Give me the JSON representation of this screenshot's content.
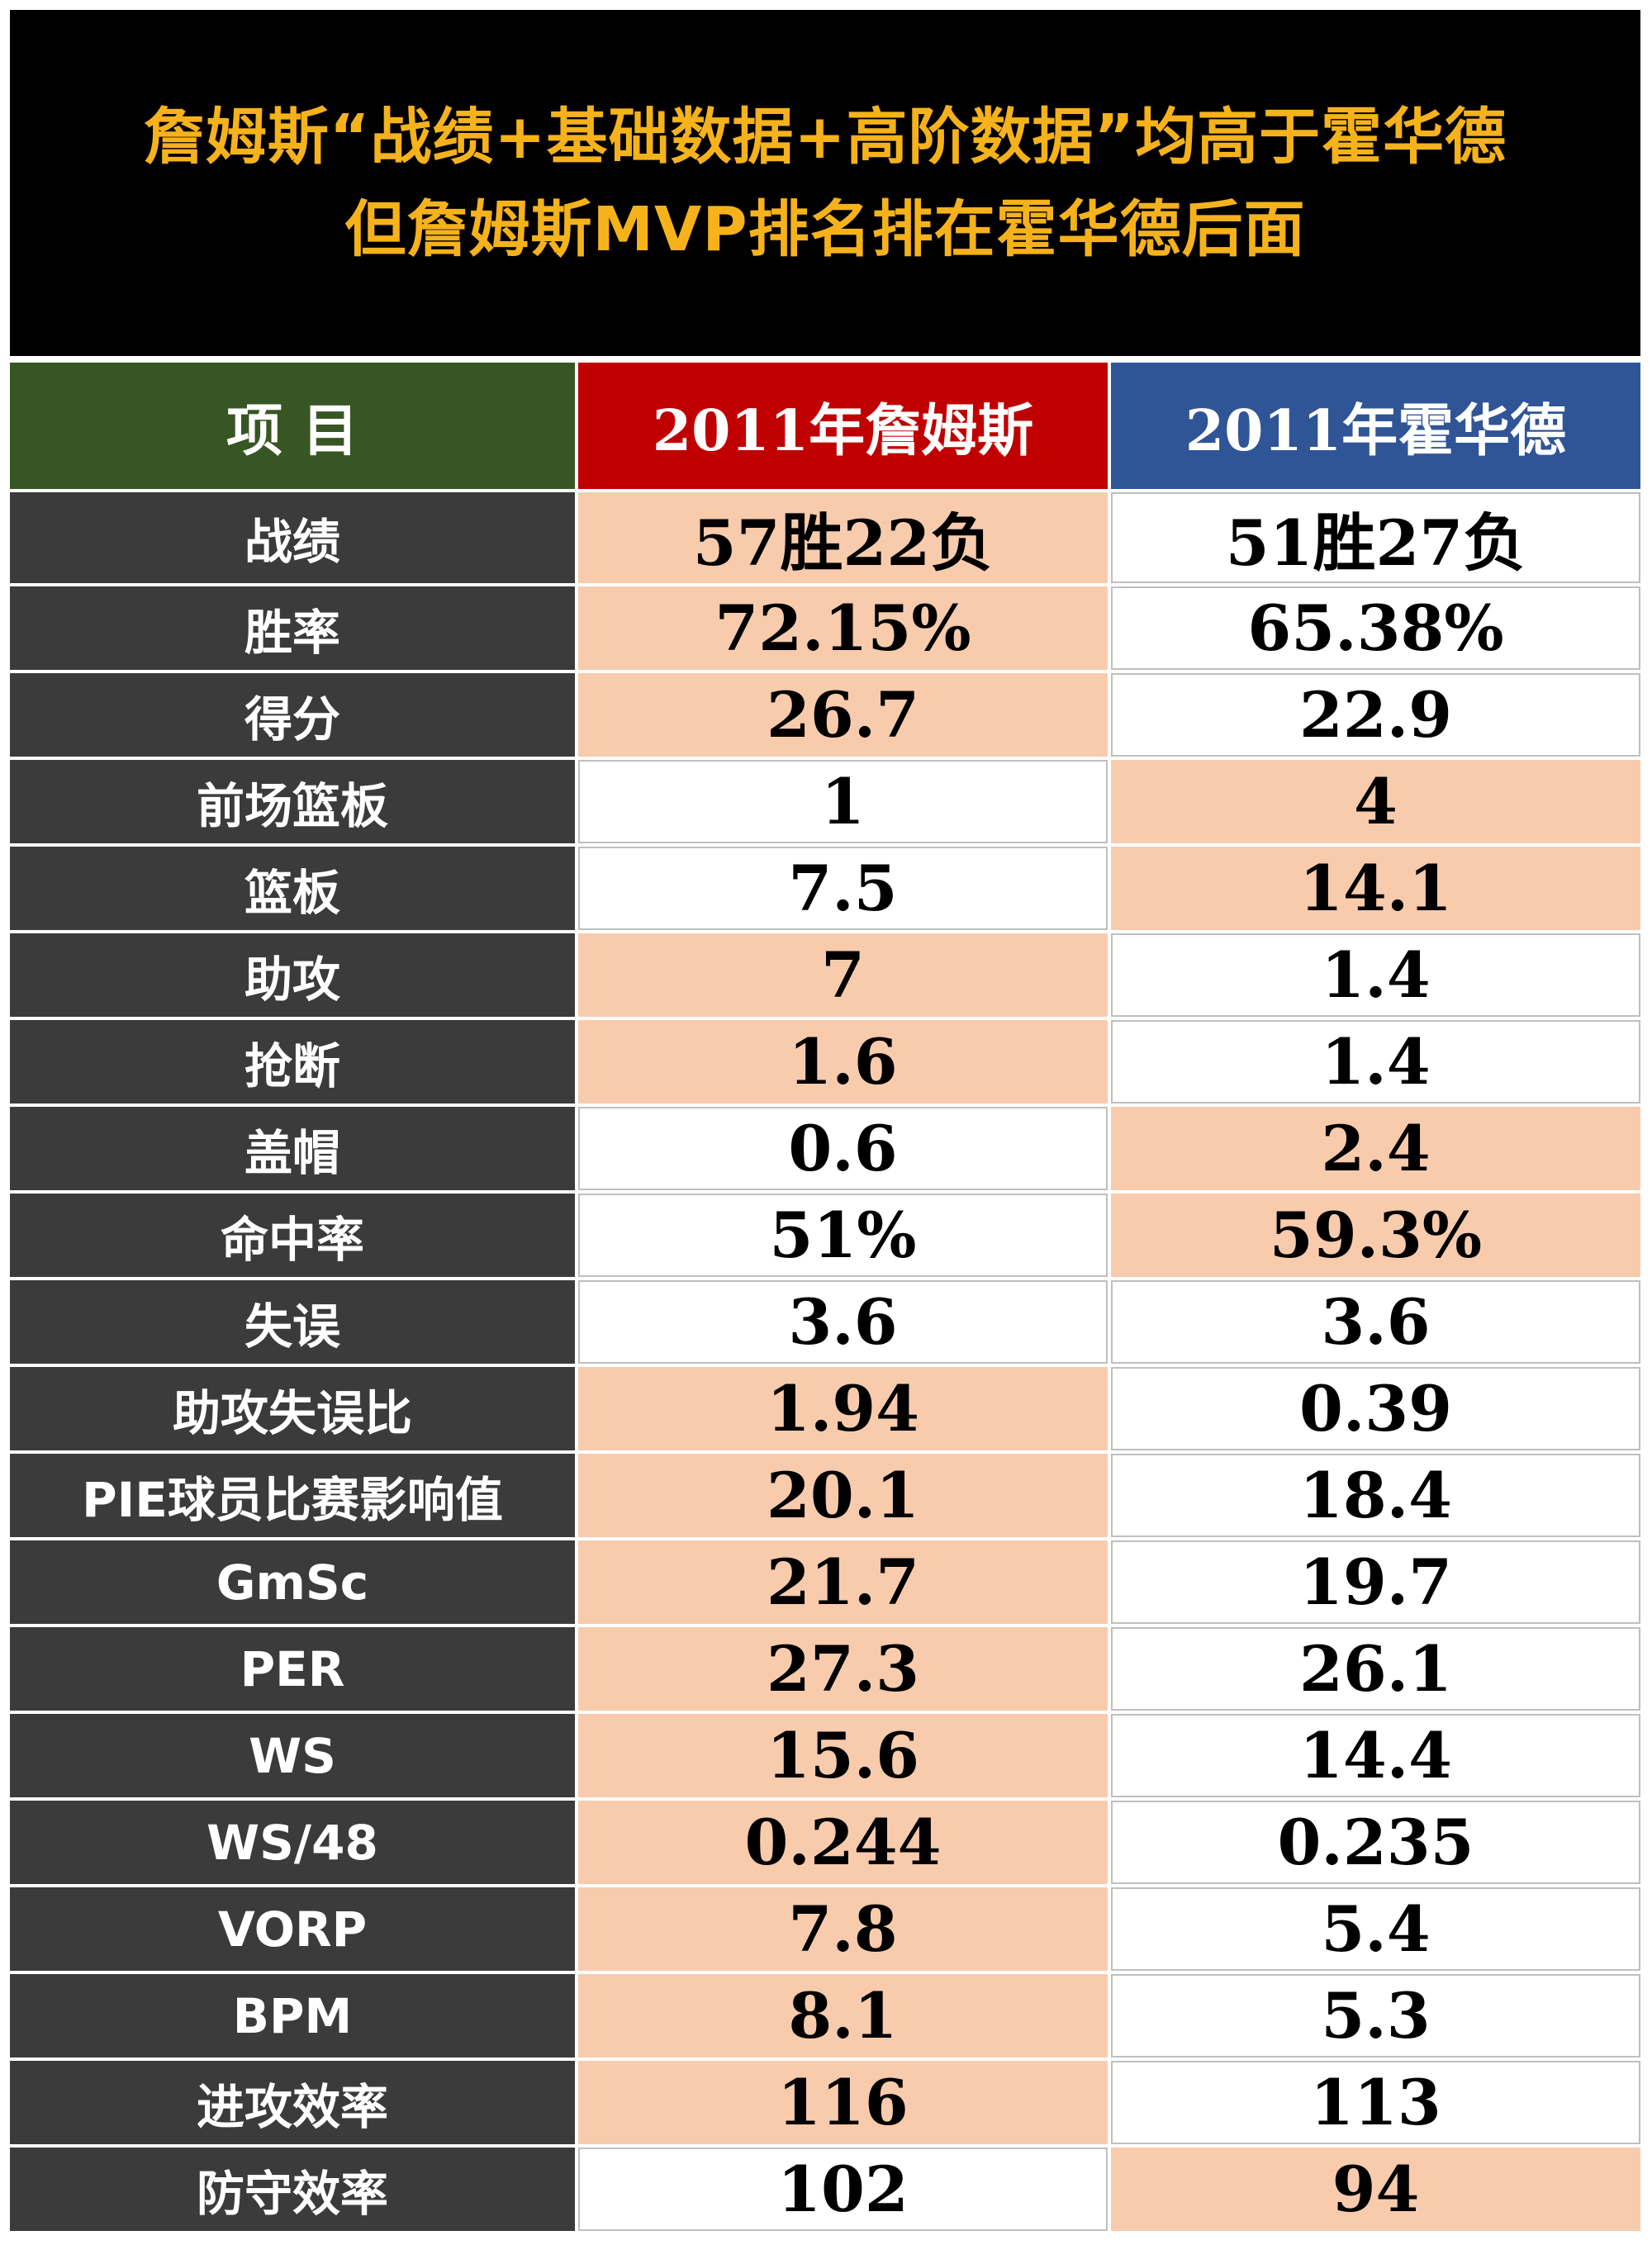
{
  "title": {
    "line1": "詹姆斯“战绩+基础数据+高阶数据”均高于霍华德",
    "line2": "但詹姆斯MVP排名排在霍华德后面"
  },
  "colors": {
    "title_bg": "#000000",
    "title_text": "#f5b21b",
    "header_item_bg": "#375623",
    "header_player1_bg": "#c00000",
    "header_player2_bg": "#2f5597",
    "label_bg": "#3b3b3b",
    "highlight_bg": "#f8cbad"
  },
  "chart_data": {
    "type": "table",
    "columns": [
      "项 目",
      "2011年詹姆斯",
      "2011年霍华德"
    ],
    "rows": [
      {
        "label": "战绩",
        "p1": "57胜22负",
        "p2": "51胜27负",
        "highlight": "p1"
      },
      {
        "label": "胜率",
        "p1": "72.15%",
        "p2": "65.38%",
        "highlight": "p1"
      },
      {
        "label": "得分",
        "p1": "26.7",
        "p2": "22.9",
        "highlight": "p1"
      },
      {
        "label": "前场篮板",
        "p1": "1",
        "p2": "4",
        "highlight": "p2"
      },
      {
        "label": "篮板",
        "p1": "7.5",
        "p2": "14.1",
        "highlight": "p2"
      },
      {
        "label": "助攻",
        "p1": "7",
        "p2": "1.4",
        "highlight": "p1"
      },
      {
        "label": "抢断",
        "p1": "1.6",
        "p2": "1.4",
        "highlight": "p1"
      },
      {
        "label": "盖帽",
        "p1": "0.6",
        "p2": "2.4",
        "highlight": "p2"
      },
      {
        "label": "命中率",
        "p1": "51%",
        "p2": "59.3%",
        "highlight": "p2"
      },
      {
        "label": "失误",
        "p1": "3.6",
        "p2": "3.6",
        "highlight": "none"
      },
      {
        "label": "助攻失误比",
        "p1": "1.94",
        "p2": "0.39",
        "highlight": "p1"
      },
      {
        "label": "PIE球员比赛影响值",
        "p1": "20.1",
        "p2": "18.4",
        "highlight": "p1"
      },
      {
        "label": "GmSc",
        "p1": "21.7",
        "p2": "19.7",
        "highlight": "p1"
      },
      {
        "label": "PER",
        "p1": "27.3",
        "p2": "26.1",
        "highlight": "p1"
      },
      {
        "label": "WS",
        "p1": "15.6",
        "p2": "14.4",
        "highlight": "p1"
      },
      {
        "label": "WS/48",
        "p1": "0.244",
        "p2": "0.235",
        "highlight": "p1"
      },
      {
        "label": "VORP",
        "p1": "7.8",
        "p2": "5.4",
        "highlight": "p1"
      },
      {
        "label": "BPM",
        "p1": "8.1",
        "p2": "5.3",
        "highlight": "p1"
      },
      {
        "label": "进攻效率",
        "p1": "116",
        "p2": "113",
        "highlight": "p1"
      },
      {
        "label": "防守效率",
        "p1": "102",
        "p2": "94",
        "highlight": "p2"
      }
    ]
  }
}
